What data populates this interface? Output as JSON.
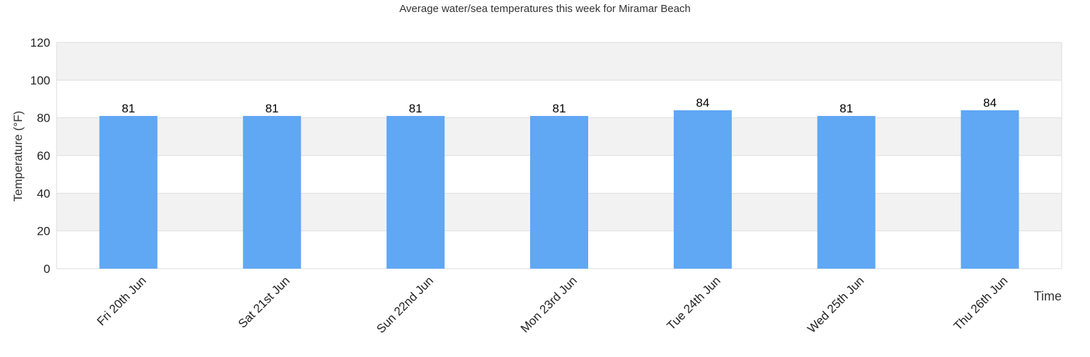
{
  "chart_data": {
    "type": "bar",
    "title": "Average water/sea temperatures this week for Miramar Beach",
    "xlabel": "Time",
    "ylabel": "Temperature (°F)",
    "categories": [
      "Fri 20th Jun",
      "Sat 21st Jun",
      "Sun 22nd Jun",
      "Mon 23rd Jun",
      "Tue 24th Jun",
      "Wed 25th Jun",
      "Thu 26th Jun"
    ],
    "values": [
      81,
      81,
      81,
      81,
      84,
      81,
      84
    ],
    "data_labels": [
      "81",
      "81",
      "81",
      "81",
      "84",
      "81",
      "84"
    ],
    "ylim": [
      0,
      120
    ],
    "yticks": [
      0,
      20,
      40,
      60,
      80,
      100,
      120
    ],
    "ytick_labels": [
      "0",
      "20",
      "40",
      "60",
      "80",
      "100",
      "120"
    ],
    "grid": true,
    "legend": "none",
    "colors": {
      "bar": "#60a7f4",
      "band": "#f2f2f2",
      "grid": "#dddddd",
      "text": "#222222",
      "title": "#333333"
    }
  }
}
